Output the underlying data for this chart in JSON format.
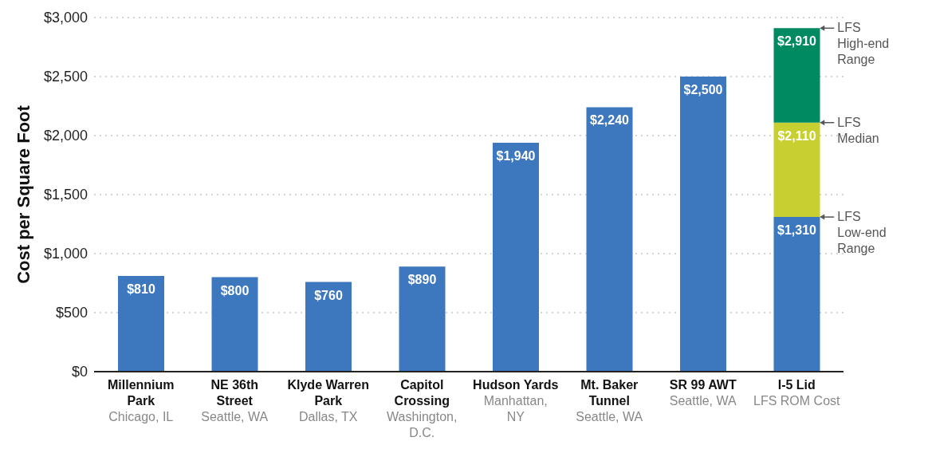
{
  "chart_data": {
    "type": "bar",
    "ylabel": "Cost per Square Foot",
    "categories": [
      "Millennium Park\nChicago, IL",
      "NE 36th Street\nSeattle, WA",
      "Klyde Warren Park\nDallas, TX",
      "Capitol Crossing\nWashington, D.C.",
      "Hudson Yards\nManhattan, NY",
      "Mt. Baker Tunnel\nSeattle, WA",
      "SR 99 AWT\nSeattle, WA",
      "I-5 Lid\nLFS ROM Cost"
    ],
    "series": [
      {
        "color": "#3d78be",
        "values": [
          810,
          800,
          760,
          890,
          1940,
          2240,
          2500,
          1310
        ],
        "value_labels": [
          "$810",
          "$800",
          "$760",
          "$890",
          "$1,940",
          "$2,240",
          "$2,500",
          "$1,310"
        ]
      },
      {
        "color": "#c8cf30",
        "values": [
          null,
          null,
          null,
          null,
          null,
          null,
          null,
          800
        ],
        "base": [
          null,
          null,
          null,
          null,
          null,
          null,
          null,
          1310
        ],
        "value_labels": [
          null,
          null,
          null,
          null,
          null,
          null,
          null,
          "$2,110"
        ]
      },
      {
        "color": "#008a62",
        "values": [
          null,
          null,
          null,
          null,
          null,
          null,
          null,
          800
        ],
        "base": [
          null,
          null,
          null,
          null,
          null,
          null,
          null,
          2110
        ],
        "value_labels": [
          null,
          null,
          null,
          null,
          null,
          null,
          null,
          "$2,910"
        ]
      }
    ],
    "ylim": [
      0,
      3000
    ],
    "yticks": [
      {
        "value": 0,
        "label": "$0"
      },
      {
        "value": 500,
        "label": "$500"
      },
      {
        "value": 1000,
        "label": "$1,000"
      },
      {
        "value": 1500,
        "label": "$1,500"
      },
      {
        "value": 2000,
        "label": "$2,000"
      },
      {
        "value": 2500,
        "label": "$2,500"
      },
      {
        "value": 3000,
        "label": "$3,000"
      }
    ],
    "grid": "y",
    "annotations": [
      "LFS High-end Range",
      "LFS Median",
      "LFS Low-end Range"
    ]
  }
}
